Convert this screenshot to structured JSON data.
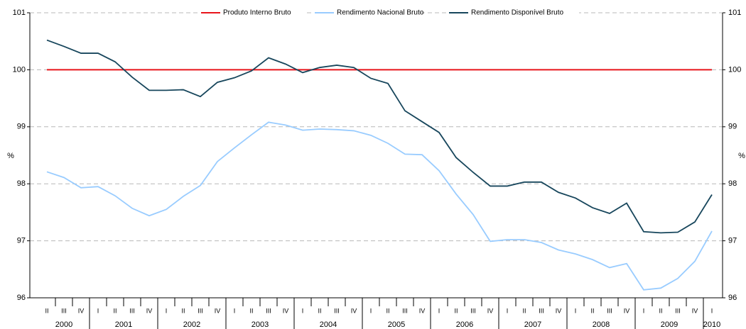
{
  "chart_data": {
    "type": "line",
    "y_label": "%",
    "categories": [
      "II",
      "III",
      "IV",
      "I",
      "II",
      "III",
      "IV",
      "I",
      "II",
      "III",
      "IV",
      "I",
      "II",
      "III",
      "IV",
      "I",
      "II",
      "III",
      "IV",
      "I",
      "II",
      "III",
      "IV",
      "I",
      "II",
      "III",
      "IV",
      "I",
      "II",
      "III",
      "IV",
      "I",
      "II",
      "III",
      "IV",
      "I",
      "II",
      "III",
      "IV",
      "I"
    ],
    "years": [
      "2000",
      "2001",
      "2002",
      "2003",
      "2004",
      "2005",
      "2006",
      "2007",
      "2008",
      "2009",
      "2010"
    ],
    "series": [
      {
        "name": "Produto Interno Bruto",
        "color": "#e8141b",
        "values": [
          100,
          100,
          100,
          100,
          100,
          100,
          100,
          100,
          100,
          100,
          100,
          100,
          100,
          100,
          100,
          100,
          100,
          100,
          100,
          100,
          100,
          100,
          100,
          100,
          100,
          100,
          100,
          100,
          100,
          100,
          100,
          100,
          100,
          100,
          100,
          100,
          100,
          100,
          100,
          100
        ]
      },
      {
        "name": "Rendimento Nacional Bruto",
        "color": "#99ccff",
        "values": [
          98.21,
          98.11,
          97.93,
          97.95,
          97.79,
          97.57,
          97.44,
          97.55,
          97.78,
          97.97,
          98.39,
          98.63,
          98.86,
          99.08,
          99.03,
          98.94,
          98.96,
          98.95,
          98.93,
          98.85,
          98.71,
          98.52,
          98.51,
          98.23,
          97.82,
          97.46,
          96.99,
          97.02,
          97.02,
          96.97,
          96.84,
          96.77,
          96.67,
          96.53,
          96.6,
          96.14,
          96.17,
          96.34,
          96.64,
          97.17
        ]
      },
      {
        "name": "Rendimento Disponível Bruto",
        "color": "#17465c",
        "values": [
          100.52,
          100.41,
          100.29,
          100.29,
          100.14,
          99.87,
          99.64,
          99.64,
          99.65,
          99.53,
          99.78,
          99.86,
          99.98,
          100.21,
          100.1,
          99.95,
          100.04,
          100.08,
          100.04,
          99.85,
          99.76,
          99.28,
          99.09,
          98.9,
          98.46,
          98.2,
          97.96,
          97.96,
          98.03,
          98.03,
          97.85,
          97.75,
          97.58,
          97.48,
          97.66,
          97.16,
          97.14,
          97.15,
          97.33,
          97.81
        ]
      }
    ],
    "ylim": [
      96,
      101
    ],
    "yticks": [
      96,
      97,
      98,
      99,
      100,
      101
    ],
    "y2lim": [
      96,
      101
    ],
    "y2ticks": [
      96,
      97,
      98,
      99,
      100,
      101
    ],
    "grid": true,
    "legend": "top"
  }
}
